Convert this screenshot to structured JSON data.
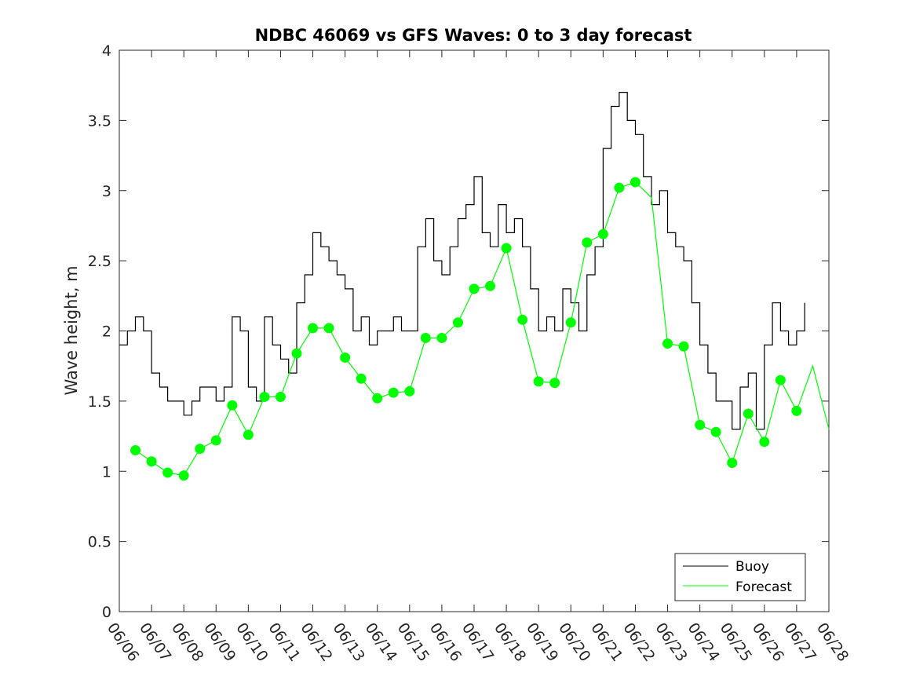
{
  "chart_data": {
    "type": "line",
    "title": "NDBC 46069 vs GFS Waves: 0 to 3 day forecast",
    "xlabel": "",
    "ylabel": "Wave height, m",
    "ylim": [
      0,
      4
    ],
    "yticks": [
      "0",
      "0.5",
      "1",
      "1.5",
      "2",
      "2.5",
      "3",
      "3.5",
      "4"
    ],
    "xlim": [
      0,
      22
    ],
    "xticks": [
      "06/06",
      "06/07",
      "06/08",
      "06/09",
      "06/10",
      "06/11",
      "06/12",
      "06/13",
      "06/14",
      "06/15",
      "06/16",
      "06/17",
      "06/18",
      "06/19",
      "06/20",
      "06/21",
      "06/22",
      "06/23",
      "06/24",
      "06/25",
      "06/26",
      "06/27",
      "06/28"
    ],
    "legend": {
      "location": "bottom-right",
      "entries": [
        "Buoy",
        "Forecast"
      ]
    },
    "colors": {
      "buoy": "#000000",
      "forecast": "#00ff00",
      "axes": "#262626"
    },
    "series": [
      {
        "name": "Buoy",
        "x": [
          0,
          0.25,
          0.5,
          0.75,
          1,
          1.25,
          1.5,
          1.75,
          2,
          2.25,
          2.5,
          2.75,
          3,
          3.25,
          3.5,
          3.75,
          4,
          4.25,
          4.5,
          4.75,
          5,
          5.25,
          5.5,
          5.75,
          6,
          6.25,
          6.5,
          6.75,
          7,
          7.25,
          7.5,
          7.75,
          8,
          8.25,
          8.5,
          8.75,
          9,
          9.25,
          9.5,
          9.75,
          10,
          10.25,
          10.5,
          10.75,
          11,
          11.25,
          11.5,
          11.75,
          12,
          12.25,
          12.5,
          12.75,
          13,
          13.25,
          13.5,
          13.75,
          14,
          14.25,
          14.5,
          14.75,
          15,
          15.25,
          15.5,
          15.75,
          16,
          16.25,
          16.5,
          16.75,
          17,
          17.25,
          17.5,
          17.75,
          18,
          18.25,
          18.5,
          18.75,
          19,
          19.25,
          19.5,
          19.75,
          20,
          20.25,
          20.5,
          20.75,
          21,
          21.25
        ],
        "y": [
          1.9,
          2.0,
          2.1,
          2.0,
          1.7,
          1.6,
          1.5,
          1.5,
          1.4,
          1.5,
          1.6,
          1.6,
          1.5,
          1.6,
          2.1,
          2.0,
          1.6,
          1.5,
          2.1,
          1.9,
          1.8,
          1.7,
          2.2,
          2.4,
          2.7,
          2.6,
          2.5,
          2.4,
          2.3,
          2.0,
          2.1,
          1.9,
          2.0,
          2.0,
          2.1,
          2.0,
          2.0,
          2.6,
          2.8,
          2.5,
          2.4,
          2.6,
          2.8,
          2.9,
          3.1,
          2.7,
          2.6,
          2.9,
          2.7,
          2.8,
          2.6,
          2.3,
          2.0,
          2.1,
          2.0,
          2.3,
          2.2,
          2.0,
          2.4,
          2.6,
          3.3,
          3.6,
          3.7,
          3.5,
          3.4,
          3.1,
          2.9,
          3.0,
          2.7,
          2.6,
          2.5,
          2.2,
          1.9,
          1.7,
          1.5,
          1.5,
          1.3,
          1.6,
          1.7,
          1.3,
          1.9,
          2.2,
          2.0,
          1.9,
          2.0,
          2.2
        ]
      },
      {
        "name": "Forecast",
        "x": [
          0.5,
          1,
          1.5,
          2,
          2.5,
          3,
          3.5,
          4,
          4.5,
          5,
          5.5,
          6,
          6.5,
          7,
          7.5,
          8,
          8.5,
          9,
          9.5,
          10,
          10.5,
          11,
          11.5,
          12,
          12.5,
          13,
          13.5,
          14,
          14.5,
          15,
          15.5,
          16,
          16.5,
          17,
          17.5,
          18,
          18.5,
          19,
          19.5,
          20,
          20.5,
          21,
          21.5,
          22
        ],
        "y": [
          1.15,
          1.07,
          0.99,
          0.97,
          1.16,
          1.22,
          1.47,
          1.26,
          1.53,
          1.53,
          1.84,
          2.02,
          2.02,
          1.81,
          1.66,
          1.52,
          1.56,
          1.57,
          1.95,
          1.95,
          2.06,
          2.3,
          2.32,
          2.59,
          2.08,
          1.64,
          1.63,
          2.06,
          2.63,
          2.69,
          3.02,
          3.06,
          2.95,
          1.91,
          1.89,
          1.33,
          1.28,
          1.06,
          1.41,
          1.21,
          1.65,
          1.43,
          1.75,
          1.3
        ]
      }
    ],
    "forecast_points": {
      "x": [
        0.5,
        1,
        1.5,
        2,
        2.5,
        3,
        3.5,
        4,
        4.5,
        5,
        5.5,
        6,
        6.5,
        7,
        7.5,
        8,
        8.5,
        9,
        9.5,
        10,
        10.5,
        11,
        11.5,
        12,
        12.5,
        13,
        13.5,
        14,
        14.5,
        15,
        15.5,
        16,
        17,
        17.5,
        18,
        18.5,
        19,
        19.5,
        20,
        20.5,
        21
      ],
      "y": [
        1.15,
        1.07,
        0.99,
        0.97,
        1.16,
        1.22,
        1.47,
        1.26,
        1.53,
        1.53,
        1.84,
        2.02,
        2.02,
        1.81,
        1.66,
        1.52,
        1.56,
        1.57,
        1.95,
        1.95,
        2.06,
        2.3,
        2.32,
        2.59,
        2.08,
        1.64,
        1.63,
        2.06,
        2.63,
        2.69,
        3.02,
        3.06,
        1.91,
        1.89,
        1.33,
        1.28,
        1.06,
        1.41,
        1.21,
        1.65,
        1.43
      ]
    },
    "grid": false
  }
}
